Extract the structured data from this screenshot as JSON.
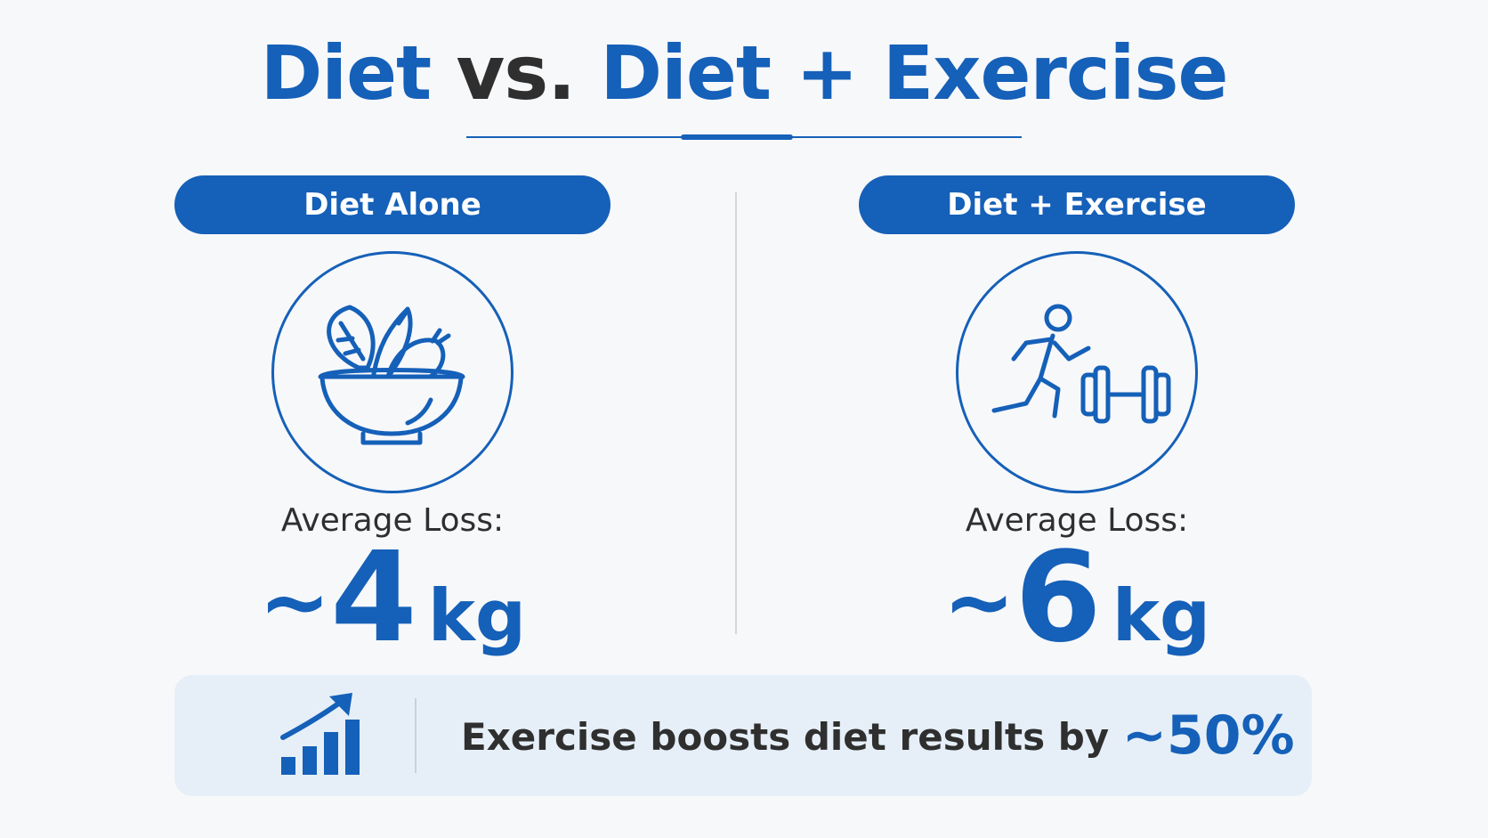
{
  "title": {
    "part1": "Diet",
    "part2": "vs.",
    "part3": "Diet + Exercise"
  },
  "left": {
    "header": "Diet Alone",
    "icon": "salad-bowl-icon",
    "avg_label": "Average Loss:",
    "tilde": "~",
    "value": "4",
    "unit": "kg"
  },
  "right": {
    "header": "Diet + Exercise",
    "icon": "runner-dumbbell-icon",
    "avg_label": "Average Loss:",
    "tilde": "~",
    "value": "6",
    "unit": "kg"
  },
  "banner": {
    "icon": "growth-chart-icon",
    "text": "Exercise boosts diet results by",
    "percent": "~50%"
  },
  "colors": {
    "accent": "#1560b8",
    "text": "#2f2f2f",
    "banner_bg": "#e6eff8"
  }
}
